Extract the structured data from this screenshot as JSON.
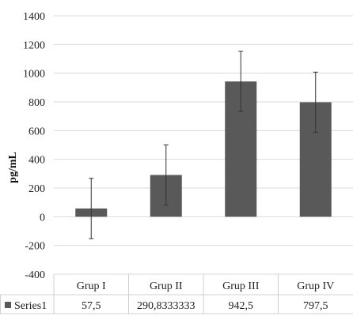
{
  "chart_data": {
    "type": "bar",
    "categories": [
      "Grup I",
      "Grup II",
      "Grup III",
      "Grup IV"
    ],
    "series": [
      {
        "name": "Series1",
        "values": [
          57.5,
          290.8333333,
          942.5,
          797.5
        ],
        "error": [
          210,
          210,
          210,
          210
        ],
        "display_values": [
          "57,5",
          "290,8333333",
          "942,5",
          "797,5"
        ],
        "color": "#595959"
      }
    ],
    "ylabel": "pg/mL",
    "ylim": [
      -400,
      1400
    ],
    "yticks": [
      1400,
      1200,
      1000,
      800,
      600,
      400,
      200,
      0,
      -200,
      -400
    ],
    "grid": true,
    "legend": "data-table-left"
  }
}
